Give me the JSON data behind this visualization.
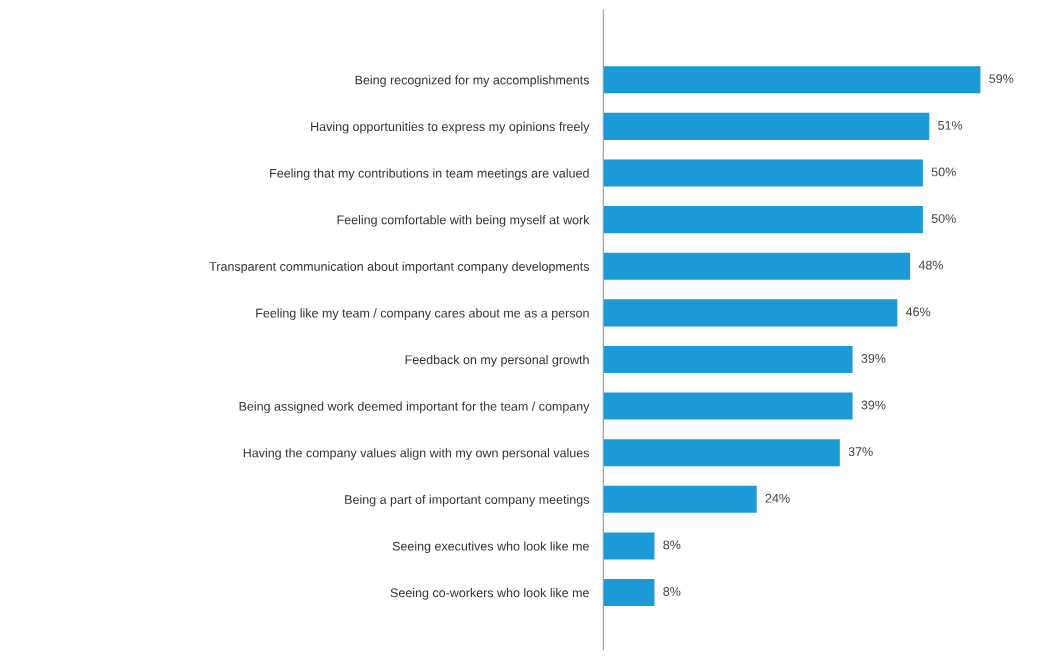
{
  "chart_data": {
    "type": "bar",
    "orientation": "horizontal",
    "categories": [
      "Being recognized for my accomplishments",
      "Having opportunities to express my opinions freely",
      "Feeling that my contributions in team meetings are valued",
      "Feeling comfortable with being myself at work",
      "Transparent communication about important company developments",
      "Feeling like my team / company cares about me as a person",
      "Feedback on my personal growth",
      "Being assigned work deemed important for the team / company",
      "Having the company values align with my own personal values",
      "Being a part of important company meetings",
      "Seeing executives who look like me",
      "Seeing co-workers who look like me"
    ],
    "values": [
      59,
      51,
      50,
      50,
      48,
      46,
      39,
      39,
      37,
      24,
      8,
      8
    ],
    "value_labels": [
      "59%",
      "51%",
      "50%",
      "50%",
      "48%",
      "46%",
      "39%",
      "39%",
      "37%",
      "24%",
      "8%",
      "8%"
    ],
    "color": "#1b9ad7",
    "tick_labels": "y",
    "grid": false,
    "legend": false
  }
}
